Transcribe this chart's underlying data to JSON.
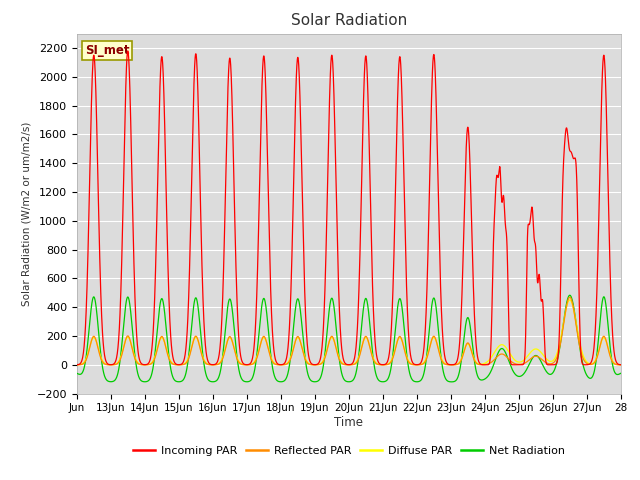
{
  "title": "Solar Radiation",
  "ylabel": "Solar Radiation (W/m2 or um/m2/s)",
  "xlabel": "Time",
  "ylim": [
    -200,
    2300
  ],
  "bg_color": "#dcdcdc",
  "label_box": "SI_met",
  "x_tick_labels": [
    "Jun",
    "13Jun",
    "14Jun",
    "15Jun",
    "16Jun",
    "17Jun",
    "18Jun",
    "19Jun",
    "20Jun",
    "21Jun",
    "22Jun",
    "23Jun",
    "24Jun",
    "25Jun",
    "26Jun",
    "27Jun",
    "28"
  ],
  "series_colors": {
    "incoming": "#ff0000",
    "reflected": "#ff8c00",
    "diffuse": "#ffff00",
    "net": "#00cc00"
  },
  "legend_labels": [
    "Incoming PAR",
    "Reflected PAR",
    "Diffuse PAR",
    "Net Radiation"
  ]
}
